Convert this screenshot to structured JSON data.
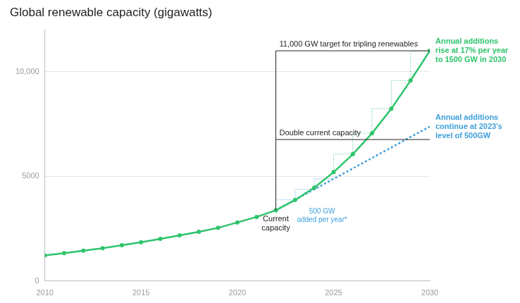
{
  "chart_data": {
    "type": "line",
    "title": "Global renewable capacity (gigawatts)",
    "x": [
      2010,
      2011,
      2012,
      2013,
      2014,
      2015,
      2016,
      2017,
      2018,
      2019,
      2020,
      2021,
      2022,
      2023,
      2024,
      2025,
      2026,
      2027,
      2028,
      2029,
      2030
    ],
    "xlim": [
      2010,
      2030
    ],
    "xticks": [
      2010,
      2015,
      2020,
      2025,
      2030
    ],
    "ylim": [
      0,
      12000
    ],
    "yticks": [
      0,
      5000,
      {
        "value": 10000,
        "label": "10,000"
      }
    ],
    "grid": true,
    "series": [
      {
        "label": [
          "Annual additions",
          "rise at 17% per year",
          "to 1500 GW in 2030"
        ],
        "color": "#2ec46b",
        "marker": "circle",
        "line_style": "solid",
        "values": [
          1220,
          1330,
          1450,
          1570,
          1710,
          1850,
          2010,
          2180,
          2350,
          2540,
          2800,
          3060,
          3380,
          3870,
          4460,
          5200,
          6060,
          7060,
          8230,
          9580,
          11000
        ]
      },
      {
        "label": [
          "Annual additions",
          "continue at 2023's",
          "level of 500GW"
        ],
        "color": "#3d9fdc",
        "marker": "none",
        "line_style": "dotted",
        "values": [
          null,
          null,
          null,
          null,
          null,
          null,
          null,
          null,
          null,
          null,
          null,
          null,
          3380,
          3880,
          4380,
          4880,
          5380,
          5880,
          6380,
          6880,
          7380
        ]
      }
    ],
    "reference_lines": [
      {
        "label": "11,000 GW target for tripling renewables",
        "value": 11000,
        "x_from": 2022,
        "x_to": 2030
      },
      {
        "label": "Double current capacity",
        "value": 6760,
        "x_from": 2022,
        "x_to": 2030
      }
    ],
    "annotations": [
      {
        "text": [
          "Current",
          "capacity"
        ],
        "x": 2022,
        "y": 2750,
        "color": "#222222"
      },
      {
        "text": [
          "500 GW",
          "added per year*"
        ],
        "x": 2024.4,
        "y": 3100,
        "color": "#3d9fdc"
      }
    ]
  }
}
